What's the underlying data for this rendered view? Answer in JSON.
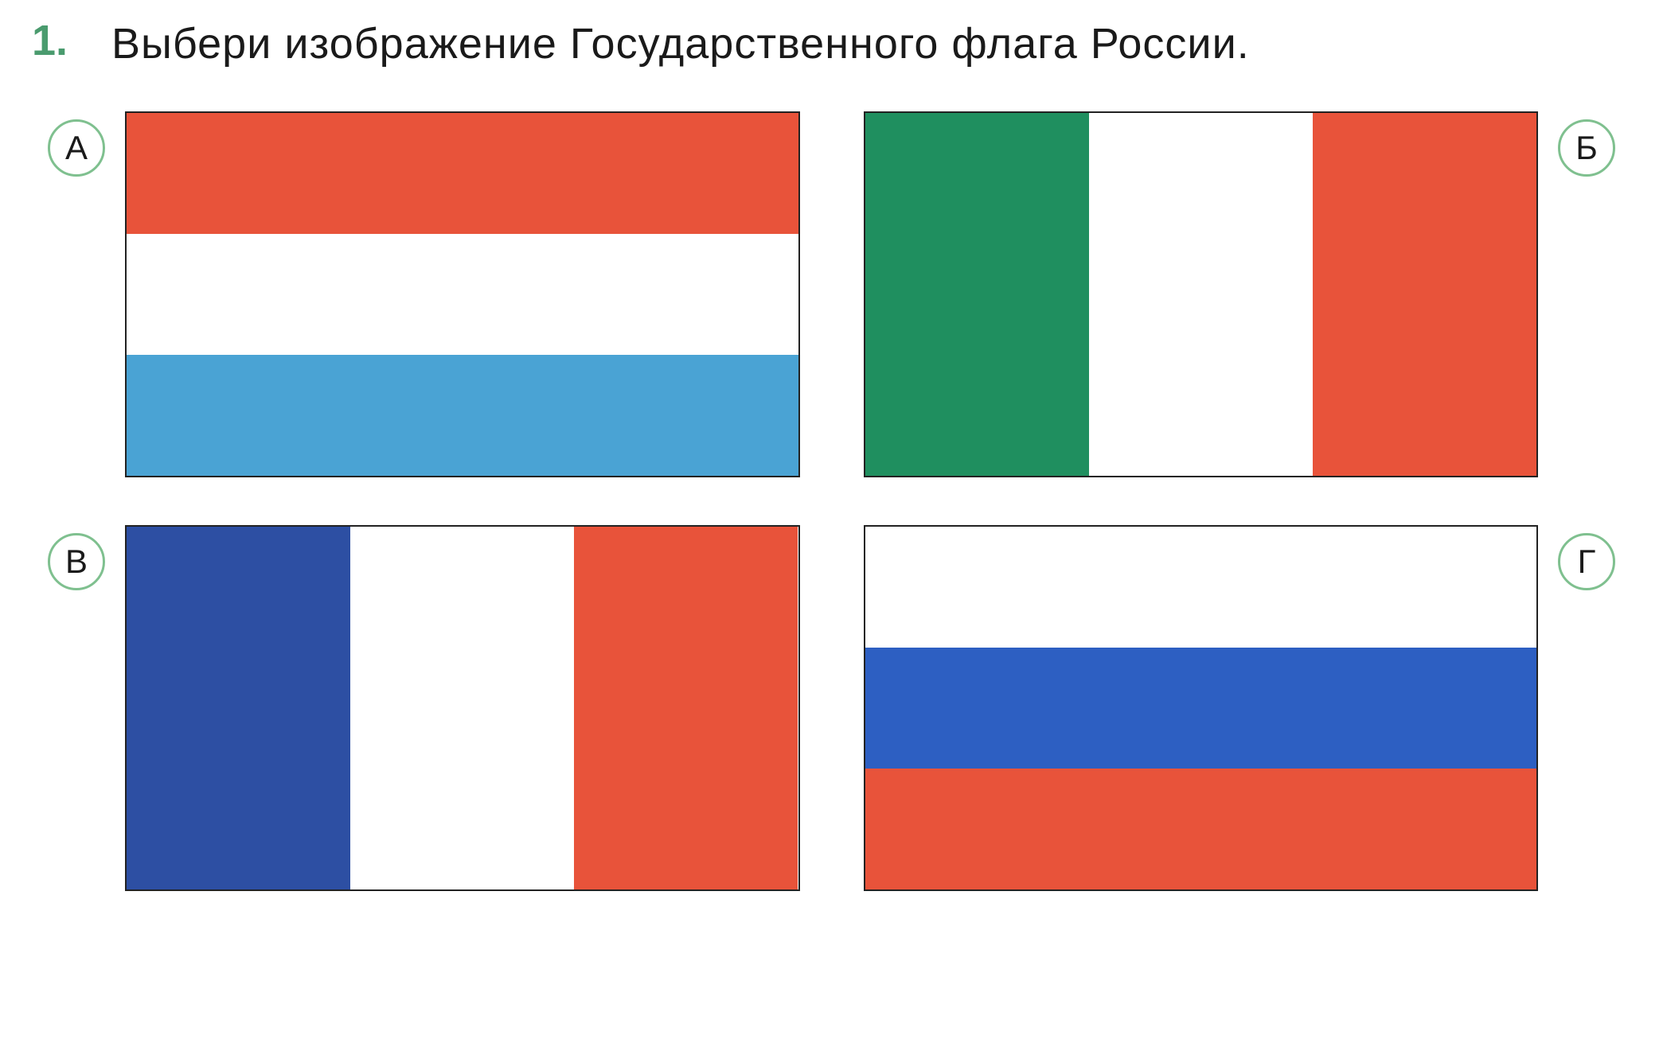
{
  "question_number": "1.",
  "question_number_color": "#4a9b6e",
  "question_text": "Выбери изображение Государственного флага России.",
  "question_text_color": "#1a1a1a",
  "option_badge_border_color": "#7fc08f",
  "option_badge_text_color": "#1a1a1a",
  "flag_width": 760,
  "flag_height": 460,
  "flags": {
    "a": {
      "label": "А",
      "orientation": "horizontal",
      "stripes": [
        {
          "color": "#e8533a",
          "fraction": 0.3333
        },
        {
          "color": "#ffffff",
          "fraction": 0.3333
        },
        {
          "color": "#4aa3d4",
          "fraction": 0.3334
        }
      ]
    },
    "b": {
      "label": "Б",
      "orientation": "vertical",
      "stripes": [
        {
          "color": "#1f8f5f",
          "fraction": 0.3333
        },
        {
          "color": "#ffffff",
          "fraction": 0.3333
        },
        {
          "color": "#e8533a",
          "fraction": 0.3334
        }
      ]
    },
    "v": {
      "label": "В",
      "orientation": "vertical",
      "stripes": [
        {
          "color": "#2d4fa3",
          "fraction": 0.3333
        },
        {
          "color": "#ffffff",
          "fraction": 0.3333
        },
        {
          "color": "#e8533a",
          "fraction": 0.3334
        }
      ]
    },
    "g": {
      "label": "Г",
      "orientation": "horizontal",
      "stripes": [
        {
          "color": "#ffffff",
          "fraction": 0.3333
        },
        {
          "color": "#2d5fc2",
          "fraction": 0.3333
        },
        {
          "color": "#e8533a",
          "fraction": 0.3334
        }
      ]
    }
  }
}
